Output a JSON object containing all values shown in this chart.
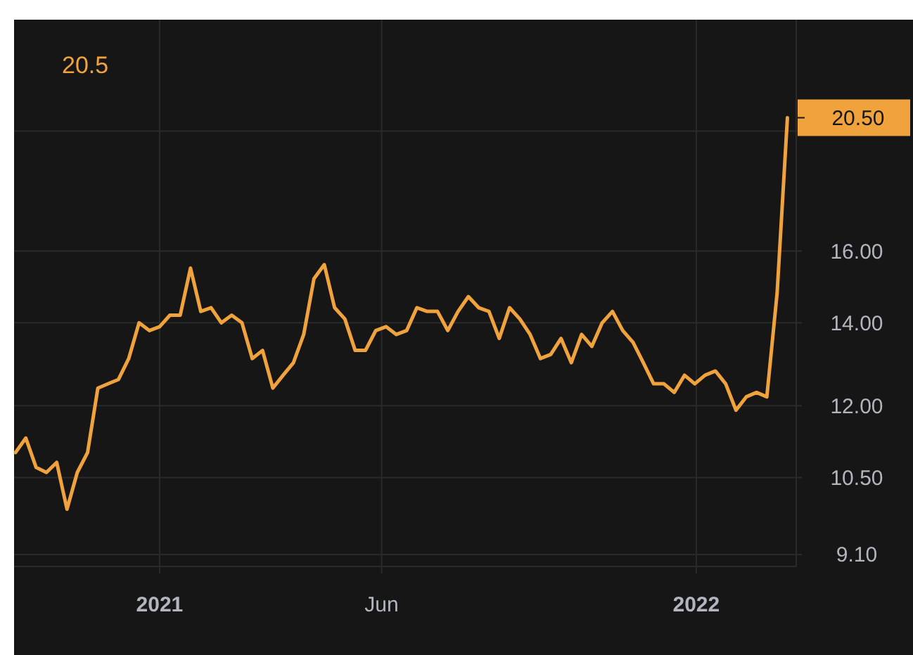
{
  "chart_data": {
    "type": "line",
    "title": "20.5",
    "log": true,
    "grid": true,
    "line_style": "solid",
    "marker": "none",
    "x": [
      "2020-09-25",
      "2020-10-02",
      "2020-10-09",
      "2020-10-16",
      "2020-10-23",
      "2020-10-30",
      "2020-11-06",
      "2020-11-13",
      "2020-11-20",
      "2020-11-27",
      "2020-12-04",
      "2020-12-11",
      "2020-12-18",
      "2020-12-25",
      "2021-01-01",
      "2021-01-08",
      "2021-01-15",
      "2021-01-22",
      "2021-01-29",
      "2021-02-05",
      "2021-02-12",
      "2021-02-19",
      "2021-02-26",
      "2021-03-05",
      "2021-03-12",
      "2021-03-19",
      "2021-03-26",
      "2021-04-02",
      "2021-04-09",
      "2021-04-16",
      "2021-04-23",
      "2021-04-30",
      "2021-05-07",
      "2021-05-14",
      "2021-05-21",
      "2021-05-28",
      "2021-06-04",
      "2021-06-11",
      "2021-06-18",
      "2021-06-25",
      "2021-07-02",
      "2021-07-09",
      "2021-07-16",
      "2021-07-23",
      "2021-07-30",
      "2021-08-06",
      "2021-08-13",
      "2021-08-20",
      "2021-08-27",
      "2021-09-03",
      "2021-09-10",
      "2021-09-17",
      "2021-09-24",
      "2021-10-01",
      "2021-10-08",
      "2021-10-15",
      "2021-10-22",
      "2021-10-29",
      "2021-11-05",
      "2021-11-12",
      "2021-11-19",
      "2021-11-26",
      "2021-12-03",
      "2021-12-10",
      "2021-12-17",
      "2021-12-24",
      "2021-12-31",
      "2022-01-07",
      "2022-01-14",
      "2022-01-21",
      "2022-01-28",
      "2022-02-04",
      "2022-02-11",
      "2022-02-18",
      "2022-02-25",
      "2022-03-04"
    ],
    "series": [
      {
        "color": "#f0a23c",
        "values": [
          11.0,
          11.3,
          10.7,
          10.6,
          10.8,
          9.9,
          10.6,
          11.0,
          12.4,
          12.5,
          12.6,
          13.1,
          14.0,
          13.8,
          13.9,
          14.2,
          14.2,
          15.5,
          14.3,
          14.4,
          14.0,
          14.2,
          14.0,
          13.1,
          13.3,
          12.4,
          12.7,
          13.0,
          13.7,
          15.2,
          15.6,
          14.4,
          14.1,
          13.3,
          13.3,
          13.8,
          13.9,
          13.7,
          13.8,
          14.4,
          14.3,
          14.3,
          13.8,
          14.3,
          14.7,
          14.4,
          14.3,
          13.6,
          14.4,
          14.1,
          13.7,
          13.1,
          13.2,
          13.6,
          13.0,
          13.7,
          13.4,
          14.0,
          14.3,
          13.8,
          13.5,
          13.0,
          12.5,
          12.5,
          12.3,
          12.7,
          12.5,
          12.7,
          12.8,
          12.5,
          11.9,
          12.2,
          12.3,
          12.2,
          14.8,
          20.5
        ]
      }
    ],
    "xlim": [
      "2020-09-24",
      "2022-03-10"
    ],
    "xticks": [
      {
        "value": "2021-01-01",
        "label": "2021"
      },
      {
        "value": "2021-06-01",
        "label": "Jun"
      },
      {
        "value": "2022-01-01",
        "label": "2022"
      }
    ],
    "ylim": [
      8.9,
      24.6
    ],
    "yticks": [
      {
        "value": 9.1,
        "label": "9.10"
      },
      {
        "value": 10.5,
        "label": "10.50"
      },
      {
        "value": 12,
        "label": "12.00"
      },
      {
        "value": 14,
        "label": "14.00"
      },
      {
        "value": 16,
        "label": "16.00"
      },
      {
        "value": 20,
        "label": null
      }
    ],
    "annotations": [
      "20.50"
    ]
  }
}
